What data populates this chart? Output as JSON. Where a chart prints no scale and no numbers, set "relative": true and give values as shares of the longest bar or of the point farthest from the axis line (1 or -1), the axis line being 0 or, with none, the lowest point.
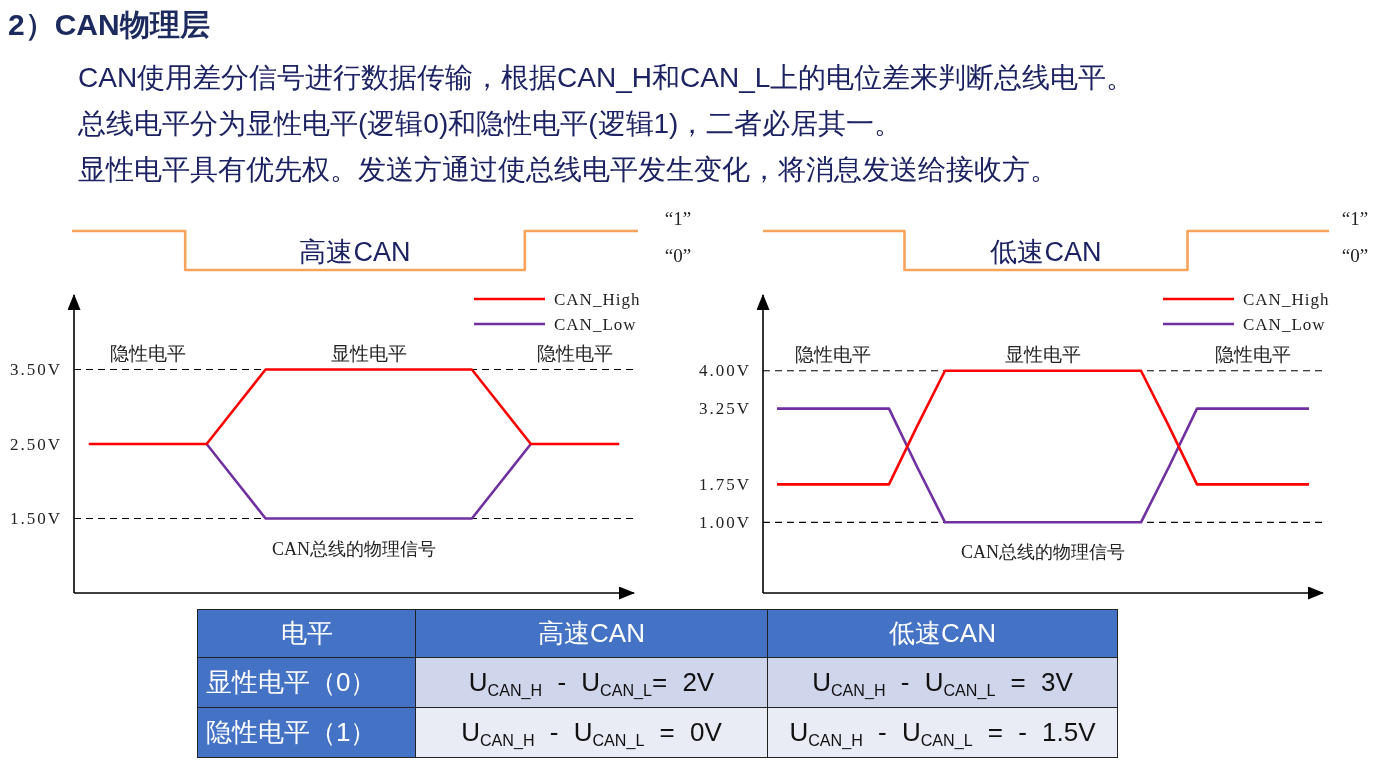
{
  "chart_data": [
    {
      "type": "other",
      "title": "2）CAN物理层",
      "annotations": [
        "CAN使用差分信号进行数据传输，根据CAN_H和CAN_L上的电位差来判断总线电平。",
        "总线电平分为显性电平(逻辑0)和隐性电平(逻辑1)，二者必居其一。",
        "显性电平具有优先权。发送方通过使总线电平发生变化，将消息发送给接收方。"
      ]
    },
    {
      "type": "step",
      "relative": true,
      "title": "高速CAN",
      "categories": [
        null,
        null,
        null,
        null,
        null,
        null
      ],
      "series": [
        {
          "color": "#f6a45c",
          "values": [
            1,
            0,
            0,
            0,
            1,
            1
          ]
        }
      ],
      "annotations": [
        "“1”",
        "“0”"
      ]
    },
    {
      "type": "line",
      "categories": [
        null,
        null,
        null,
        null,
        null,
        null,
        null,
        null,
        null,
        null,
        null,
        null,
        null,
        null,
        null,
        null,
        null,
        null,
        null
      ],
      "series": [
        {
          "name": "CAN_High",
          "color": "#ff0000",
          "values": [
            2.5,
            2.5,
            2.5,
            2.5,
            2.5,
            3,
            3.5,
            3.5,
            3.5,
            3.5,
            3.5,
            3.5,
            3.5,
            3.5,
            3,
            2.5,
            2.5,
            2.5,
            2.5
          ]
        },
        {
          "name": "CAN_Low",
          "color": "#7030a0",
          "values": [
            null,
            null,
            null,
            null,
            2.5,
            2,
            1.5,
            1.5,
            1.5,
            1.5,
            1.5,
            1.5,
            1.5,
            1.5,
            2,
            2.5,
            null,
            null,
            null
          ]
        }
      ],
      "ylim": [
        0.5,
        4.5
      ],
      "yticks": [
        {
          "value": 1.5,
          "label": "1.50V"
        },
        {
          "value": 2.5,
          "label": "2.50V"
        },
        {
          "value": 3.5,
          "label": "3.50V"
        }
      ],
      "ref_lines": [
        {
          "axis": "y",
          "value": 3.5,
          "color": "#000000",
          "line_style": "dashed"
        },
        {
          "axis": "y",
          "value": 1.5,
          "color": "#000000",
          "line_style": "dashed"
        }
      ],
      "legend": "top right",
      "annotations": [
        "隐性电平",
        "显性电平",
        "隐性电平",
        "CAN总线的物理信号"
      ]
    },
    {
      "type": "step",
      "relative": true,
      "title": "低速CAN",
      "categories": [
        null,
        null,
        null,
        null,
        null
      ],
      "series": [
        {
          "color": "#f6a45c",
          "values": [
            1,
            0,
            0,
            1,
            1
          ]
        }
      ],
      "annotations": [
        "“1”",
        "“0”"
      ]
    },
    {
      "type": "line",
      "categories": [
        null,
        null,
        null,
        null,
        null,
        null,
        null,
        null,
        null,
        null,
        null,
        null,
        null,
        null,
        null,
        null,
        null,
        null,
        null,
        null
      ],
      "series": [
        {
          "name": "CAN_High",
          "color": "#ff0000",
          "values": [
            1.75,
            1.75,
            1.75,
            1.75,
            1.75,
            2.9,
            4,
            4,
            4,
            4,
            4,
            4,
            4,
            4,
            2.9,
            1.75,
            1.75,
            1.75,
            1.75,
            1.75
          ]
        },
        {
          "name": "CAN_Low",
          "color": "#7030a0",
          "values": [
            3.25,
            3.25,
            3.25,
            3.25,
            3.25,
            2.1,
            1,
            1,
            1,
            1,
            1,
            1,
            1,
            1,
            2.1,
            3.25,
            3.25,
            3.25,
            3.25,
            3.25
          ]
        }
      ],
      "ylim": [
        -0.4,
        5.5
      ],
      "yticks": [
        {
          "value": 1,
          "label": "1.00V"
        },
        {
          "value": 1.75,
          "label": "1.75V"
        },
        {
          "value": 3.25,
          "label": "3.25V"
        },
        {
          "value": 4,
          "label": "4.00V"
        }
      ],
      "ref_lines": [
        {
          "axis": "y",
          "value": 4,
          "color": "#000000",
          "line_style": "dashed"
        },
        {
          "axis": "y",
          "value": 1,
          "color": "#000000",
          "line_style": "dashed"
        }
      ],
      "legend": "top right",
      "annotations": [
        "隐性电平",
        "显性电平",
        "隐性电平",
        "CAN总线的物理信号"
      ]
    },
    {
      "type": "other",
      "annotations": [
        "电平",
        "高速CAN",
        "低速CAN",
        "显性电平（0）",
        "U$_{CAN_H}$ - U$_{CAN_L}$= 2V",
        "U$_{CAN_H}$ - U$_{CAN_L}$ = 3V",
        "隐性电平（1）",
        "U$_{CAN_H}$ - U$_{CAN_L}$ = 0V",
        "U$_{CAN_H}$ - U$_{CAN_L}$ = - 1.5V"
      ]
    }
  ]
}
